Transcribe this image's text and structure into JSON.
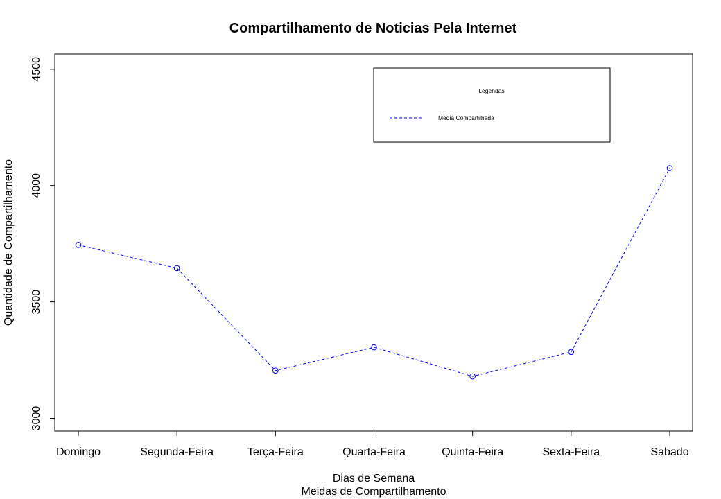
{
  "chart_data": {
    "type": "line",
    "title": "Compartilhamento de Noticias Pela Internet",
    "xlabel": "Dias de Semana",
    "xlabel_sub": "Meidas de Compartilhamento",
    "ylabel": "Quantidade de Compartilhamento",
    "categories": [
      "Domingo",
      "Segunda-Feira",
      "Terça-Feira",
      "Quarta-Feira",
      "Quinta-Feira",
      "Sexta-Feira",
      "Sabado"
    ],
    "series": [
      {
        "name": "Media Compartilhada",
        "values": [
          3745,
          3645,
          3205,
          3305,
          3180,
          3285,
          4075
        ],
        "color": "#0000ff",
        "line_style": "dashed",
        "marker": "open-circle"
      }
    ],
    "ylim": [
      2945,
      4565
    ],
    "yticks": [
      3000,
      3500,
      4000,
      4500
    ],
    "legend": {
      "title": "Legendas",
      "placement": "top-right"
    },
    "grid": false
  }
}
